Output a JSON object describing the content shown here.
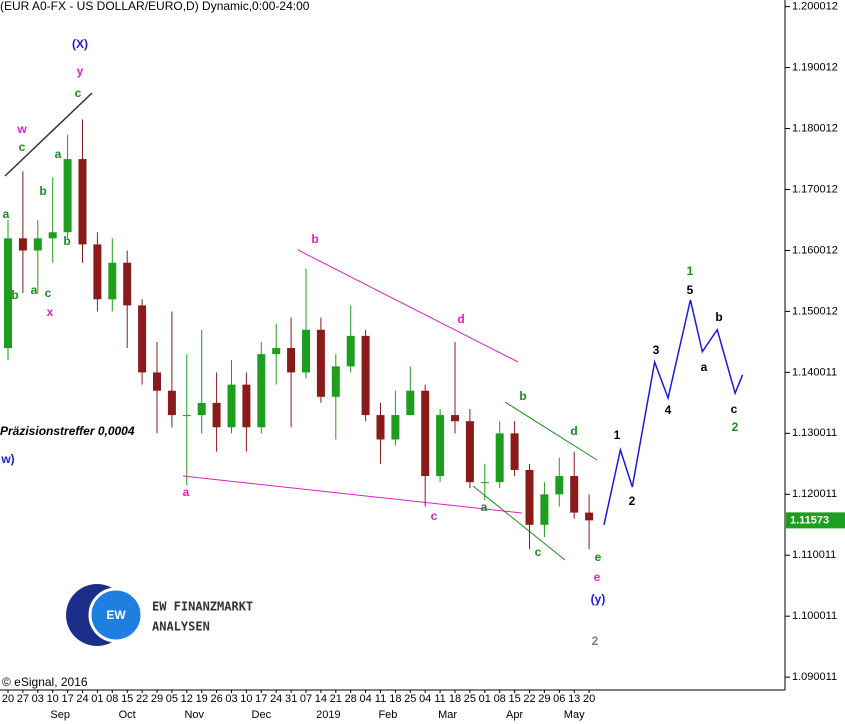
{
  "chart_data": {
    "type": "candlestick",
    "title": "(EUR A0-FX - US DOLLAR/EURO,D) Dynamic,0:00-24:00",
    "categories": [
      "20",
      "27",
      "03",
      "10",
      "17",
      "24",
      "01",
      "08",
      "15",
      "22",
      "29",
      "05",
      "12",
      "19",
      "26",
      "03",
      "10",
      "17",
      "24",
      "31",
      "07",
      "14",
      "21",
      "28",
      "04",
      "11",
      "18",
      "25",
      "04",
      "11",
      "18",
      "25",
      "01",
      "08",
      "15",
      "22",
      "29",
      "06",
      "13",
      "20"
    ],
    "month_labels": [
      "Sep",
      "Oct",
      "Nov",
      "Dec",
      "2019",
      "Feb",
      "Mar",
      "Apr",
      "May"
    ],
    "open": [
      1.144,
      1.162,
      1.16,
      1.162,
      1.163,
      1.175,
      1.161,
      1.152,
      1.158,
      1.151,
      1.14,
      1.137,
      1.133,
      1.133,
      1.135,
      1.131,
      1.138,
      1.131,
      1.143,
      1.144,
      1.14,
      1.147,
      1.136,
      1.141,
      1.146,
      1.133,
      1.129,
      1.133,
      1.137,
      1.123,
      1.133,
      1.132,
      1.122,
      1.122,
      1.13,
      1.124,
      1.115,
      1.12,
      1.123,
      1.117
    ],
    "high": [
      1.165,
      1.173,
      1.165,
      1.172,
      1.179,
      1.1815,
      1.163,
      1.162,
      1.16,
      1.152,
      1.145,
      1.15,
      1.143,
      1.147,
      1.14,
      1.142,
      1.14,
      1.145,
      1.148,
      1.149,
      1.157,
      1.149,
      1.143,
      1.151,
      1.147,
      1.135,
      1.137,
      1.141,
      1.138,
      1.134,
      1.145,
      1.134,
      1.125,
      1.132,
      1.132,
      1.125,
      1.122,
      1.126,
      1.127,
      1.12
    ],
    "low": [
      1.142,
      1.153,
      1.153,
      1.158,
      1.162,
      1.158,
      1.15,
      1.15,
      1.144,
      1.138,
      1.13,
      1.131,
      1.1215,
      1.13,
      1.127,
      1.13,
      1.127,
      1.13,
      1.138,
      1.131,
      1.139,
      1.135,
      1.129,
      1.14,
      1.132,
      1.125,
      1.128,
      1.133,
      1.118,
      1.122,
      1.13,
      1.121,
      1.119,
      1.121,
      1.123,
      1.111,
      1.113,
      1.118,
      1.116,
      1.111
    ],
    "close": [
      1.162,
      1.16,
      1.162,
      1.163,
      1.175,
      1.161,
      1.152,
      1.158,
      1.151,
      1.14,
      1.137,
      1.133,
      1.133,
      1.135,
      1.131,
      1.138,
      1.131,
      1.143,
      1.144,
      1.14,
      1.147,
      1.136,
      1.141,
      1.146,
      1.133,
      1.129,
      1.133,
      1.137,
      1.123,
      1.133,
      1.132,
      1.122,
      1.122,
      1.13,
      1.124,
      1.115,
      1.12,
      1.123,
      1.117,
      1.11573
    ],
    "up_color": "#1e9e1e",
    "down_color": "#8b1a1a",
    "last_price": 1.11573,
    "projection": {
      "color": "#1a1adc",
      "x": [
        40,
        41.1,
        41.9,
        43.4,
        44.3,
        45.8,
        46.6,
        47.6,
        48.8,
        49.3
      ],
      "values": [
        1.115,
        1.1273,
        1.1212,
        1.1417,
        1.1358,
        1.1519,
        1.1434,
        1.147,
        1.1366,
        1.1396
      ]
    },
    "ylim": [
      1.0879,
      1.2011
    ],
    "yticks": [
      1.200012,
      1.190012,
      1.180012,
      1.170012,
      1.160012,
      1.150012,
      1.140011,
      1.130011,
      1.120011,
      1.110011,
      1.100011,
      1.090011
    ],
    "annotations": [
      {
        "text": "(X)",
        "color": "#1a1adc"
      },
      {
        "text": "y",
        "color": "#e020c0"
      },
      {
        "text": "c",
        "color": "#1e8a1e"
      },
      {
        "text": "w",
        "color": "#e020c0"
      },
      {
        "text": "c",
        "color": "#1e8a1e"
      },
      {
        "text": "a",
        "color": "#1e8a1e"
      },
      {
        "text": "a",
        "color": "#1e8a1e"
      },
      {
        "text": "b",
        "color": "#1e8a1e"
      },
      {
        "text": "b",
        "color": "#1e8a1e"
      },
      {
        "text": "b",
        "color": "#1e8a1e"
      },
      {
        "text": "a",
        "color": "#1e8a1e"
      },
      {
        "text": "c",
        "color": "#1e8a1e"
      },
      {
        "text": "x",
        "color": "#e020c0"
      },
      {
        "text": "b",
        "color": "#e020c0"
      },
      {
        "text": "d",
        "color": "#e020c0"
      },
      {
        "text": "b",
        "color": "#1e8a1e"
      },
      {
        "text": "d",
        "color": "#1e8a1e"
      },
      {
        "text": "a",
        "color": "#e020c0"
      },
      {
        "text": "c",
        "color": "#e020c0"
      },
      {
        "text": "a",
        "color": "#1e8a1e"
      },
      {
        "text": "c",
        "color": "#1e8a1e"
      },
      {
        "text": "e",
        "color": "#1e8a1e"
      },
      {
        "text": "e",
        "color": "#e020c0"
      },
      {
        "text": "(y)",
        "color": "#1a1adc"
      },
      {
        "text": "2",
        "color": "#808080"
      },
      {
        "text": "w)",
        "color": "#1a1adc"
      },
      {
        "text": "1",
        "color": "#1e8a1e"
      },
      {
        "text": "5",
        "color": "#000000"
      },
      {
        "text": "3",
        "color": "#000000"
      },
      {
        "text": "4",
        "color": "#000000"
      },
      {
        "text": "1",
        "color": "#000000"
      },
      {
        "text": "2",
        "color": "#000000"
      },
      {
        "text": "a",
        "color": "#000000"
      },
      {
        "text": "b",
        "color": "#000000"
      },
      {
        "text": "c",
        "color": "#000000"
      },
      {
        "text": "2",
        "color": "#1e8a1e"
      },
      {
        "text": "Präzisionstreffer 0,0004",
        "color": "#000000"
      }
    ],
    "copyright": "© eSignal, 2016"
  },
  "logo": {
    "monogram": "EW",
    "line1": "EW FINANZMARKT",
    "line2": "ANALYSEN"
  }
}
